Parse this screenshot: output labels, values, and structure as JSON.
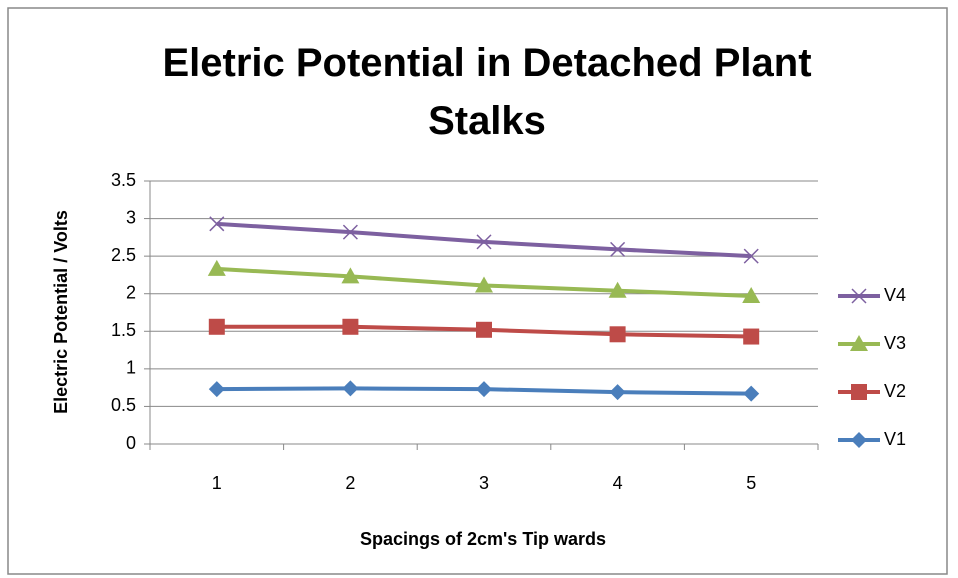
{
  "chart_data": {
    "type": "line",
    "title": "Eletric Potential in Detached Plant Stalks",
    "xlabel": "Spacings of 2cm's Tip wards",
    "ylabel": "Electric Potential / Volts",
    "categories": [
      "1",
      "2",
      "3",
      "4",
      "5"
    ],
    "series": [
      {
        "name": "V1",
        "color": "#4a7ebb",
        "marker": "diamond",
        "values": [
          0.73,
          0.74,
          0.73,
          0.69,
          0.67
        ]
      },
      {
        "name": "V2",
        "color": "#be4b48",
        "marker": "square",
        "values": [
          1.56,
          1.56,
          1.52,
          1.46,
          1.43
        ]
      },
      {
        "name": "V3",
        "color": "#98b954",
        "marker": "triangle",
        "values": [
          2.33,
          2.23,
          2.11,
          2.04,
          1.97
        ]
      },
      {
        "name": "V4",
        "color": "#7d60a0",
        "marker": "x",
        "values": [
          2.93,
          2.82,
          2.69,
          2.59,
          2.5
        ]
      }
    ],
    "ylim": [
      0,
      3.5
    ],
    "yticks": [
      0,
      0.5,
      1,
      1.5,
      2,
      2.5,
      3,
      3.5
    ],
    "grid": true,
    "legend": "right"
  }
}
